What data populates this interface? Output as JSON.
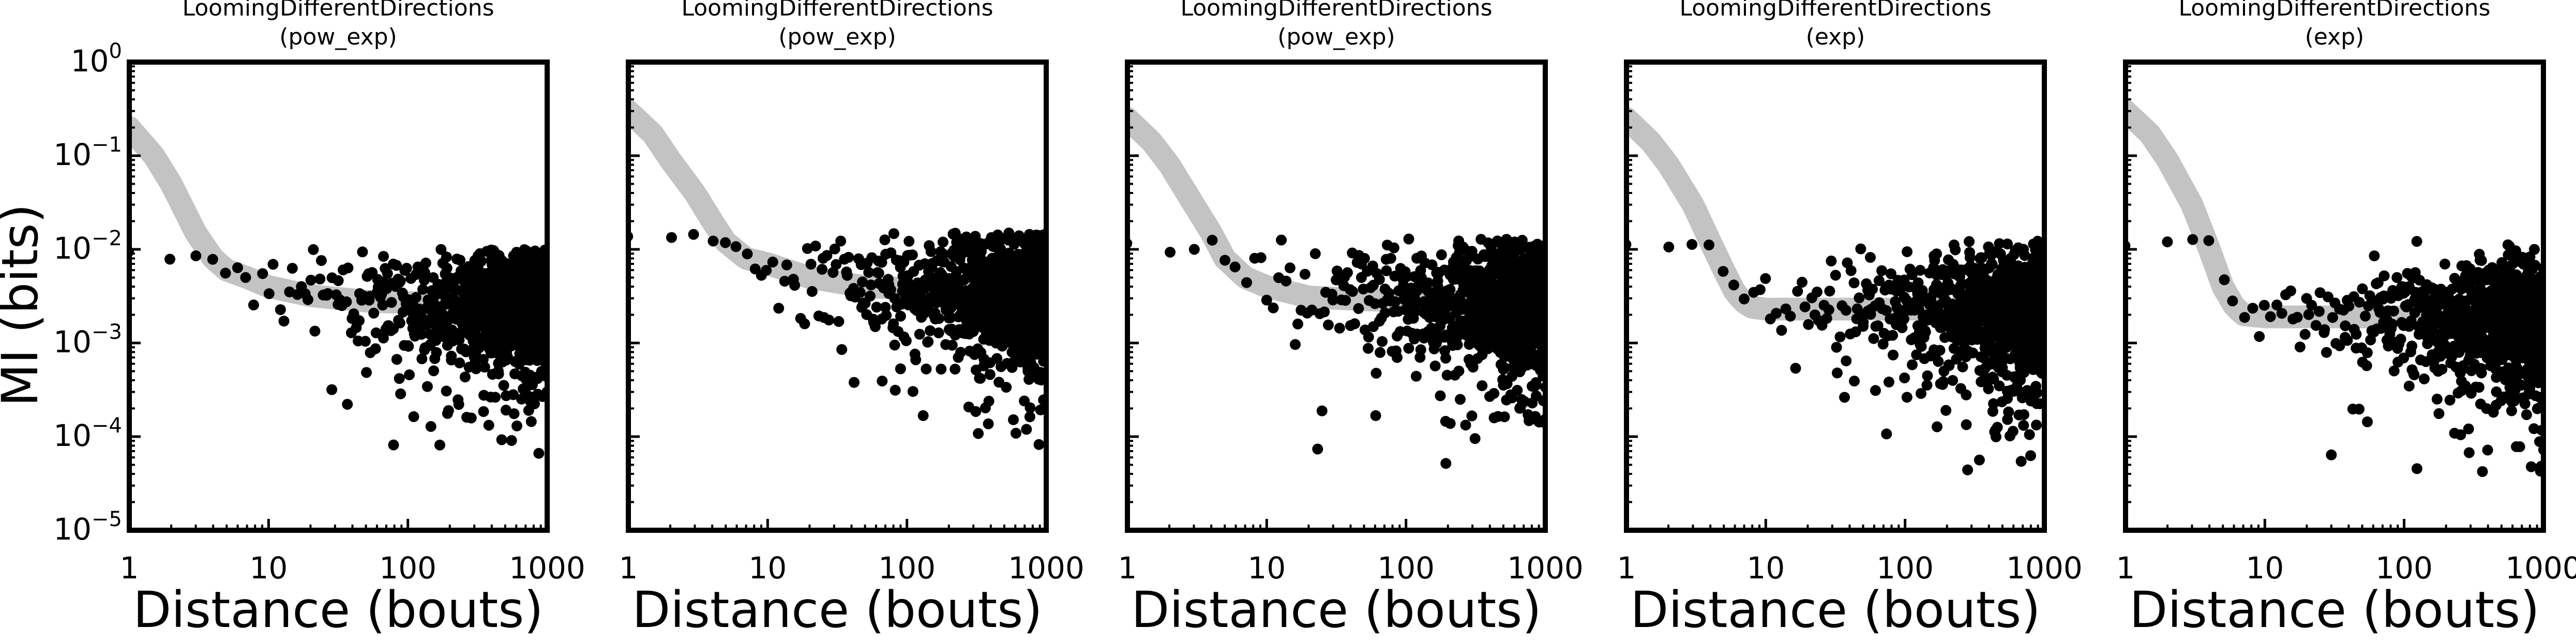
{
  "figure": {
    "ylabel": "MI (bits)",
    "xlabel": "Distance (bouts)"
  },
  "chart_data": [
    {
      "type": "scatter",
      "title": "LoomingDifferentDirections",
      "subtitle": "(pow_exp)",
      "xlabel": "Distance (bouts)",
      "ylabel": "MI (bits)",
      "xscale": "log",
      "yscale": "log",
      "xlim": [
        1,
        1000
      ],
      "ylim": [
        1e-05,
        1
      ],
      "xticks": [
        "1",
        "10",
        "100",
        "1000"
      ],
      "yticks": [
        {
          "base": "10",
          "exp": "0"
        },
        {
          "base": "10",
          "exp": "−1"
        },
        {
          "base": "10",
          "exp": "−2"
        },
        {
          "base": "10",
          "exp": "−3"
        },
        {
          "base": "10",
          "exp": "−4"
        },
        {
          "base": "10",
          "exp": "−5"
        }
      ],
      "fit": {
        "model": "pow_exp",
        "x": [
          1,
          1.5,
          2,
          3,
          4,
          5,
          7,
          10,
          20,
          50,
          100,
          300,
          1000
        ],
        "y": [
          0.2,
          0.1,
          0.05,
          0.015,
          0.008,
          0.006,
          0.005,
          0.004,
          0.0032,
          0.0028,
          0.0027,
          0.0026,
          0.0025
        ]
      },
      "points": {
        "count": 1000,
        "x_range": [
          1,
          1000
        ],
        "y_range": [
          3e-05,
          0.01
        ],
        "trend": "pow_exp"
      }
    },
    {
      "type": "scatter",
      "title": "LoomingDifferentDirections",
      "subtitle": "(pow_exp)",
      "xlabel": "Distance (bouts)",
      "xscale": "log",
      "yscale": "log",
      "xlim": [
        1,
        1000
      ],
      "ylim": [
        1e-05,
        1
      ],
      "xticks": [
        "1",
        "10",
        "100",
        "1000"
      ],
      "fit": {
        "model": "pow_exp",
        "x": [
          1,
          1.5,
          2,
          3,
          4,
          5,
          7,
          10,
          20,
          50,
          100,
          300,
          1000
        ],
        "y": [
          0.3,
          0.17,
          0.09,
          0.04,
          0.02,
          0.012,
          0.008,
          0.007,
          0.005,
          0.004,
          0.0038,
          0.0037,
          0.0036
        ]
      },
      "points": {
        "count": 1000,
        "x_range": [
          1,
          1000
        ],
        "y_range": [
          1e-05,
          0.015
        ],
        "trend": "pow_exp"
      }
    },
    {
      "type": "scatter",
      "title": "LoomingDifferentDirections",
      "subtitle": "(pow_exp)",
      "xlabel": "Distance (bouts)",
      "xscale": "log",
      "yscale": "log",
      "xlim": [
        1,
        1000
      ],
      "ylim": [
        1e-05,
        1
      ],
      "xticks": [
        "1",
        "10",
        "100",
        "1000"
      ],
      "fit": {
        "model": "pow_exp",
        "x": [
          1,
          1.5,
          2,
          3,
          4,
          5,
          7,
          10,
          20,
          50,
          100,
          300,
          1000
        ],
        "y": [
          0.25,
          0.14,
          0.08,
          0.03,
          0.015,
          0.008,
          0.005,
          0.004,
          0.0031,
          0.0029,
          0.0028,
          0.0028,
          0.0028
        ]
      },
      "points": {
        "count": 1000,
        "x_range": [
          1,
          1000
        ],
        "y_range": [
          1.2e-05,
          0.013
        ],
        "trend": "pow_exp"
      }
    },
    {
      "type": "scatter",
      "title": "LoomingDifferentDirections",
      "subtitle": "(exp)",
      "xlabel": "Distance (bouts)",
      "xscale": "log",
      "yscale": "log",
      "xlim": [
        1,
        1000
      ],
      "ylim": [
        1e-05,
        1
      ],
      "xticks": [
        "1",
        "10",
        "100",
        "1000"
      ],
      "fit": {
        "model": "exp",
        "x": [
          1,
          1.5,
          2,
          3,
          4,
          5,
          6,
          7,
          8,
          10,
          20,
          100,
          1000
        ],
        "y": [
          0.25,
          0.14,
          0.08,
          0.03,
          0.012,
          0.006,
          0.0035,
          0.0027,
          0.0024,
          0.0023,
          0.0023,
          0.0023,
          0.0023
        ]
      },
      "points": {
        "count": 1000,
        "x_range": [
          1,
          1000
        ],
        "y_range": [
          4e-05,
          0.013
        ],
        "trend": "exp"
      }
    },
    {
      "type": "scatter",
      "title": "LoomingDifferentDirections",
      "subtitle": "(exp)",
      "xlabel": "Distance (bouts)",
      "xscale": "log",
      "yscale": "log",
      "xlim": [
        1,
        1000
      ],
      "ylim": [
        1e-05,
        1
      ],
      "xticks": [
        "1",
        "10",
        "100",
        "1000"
      ],
      "fit": {
        "model": "exp",
        "x": [
          1,
          1.5,
          2,
          3,
          4,
          5,
          6,
          7,
          10,
          20,
          100,
          1000
        ],
        "y": [
          0.3,
          0.17,
          0.09,
          0.03,
          0.01,
          0.004,
          0.0025,
          0.002,
          0.0019,
          0.0019,
          0.0019,
          0.0019
        ]
      },
      "points": {
        "count": 1000,
        "x_range": [
          1,
          1000
        ],
        "y_range": [
          1.2e-05,
          0.013
        ],
        "trend": "exp"
      }
    }
  ]
}
